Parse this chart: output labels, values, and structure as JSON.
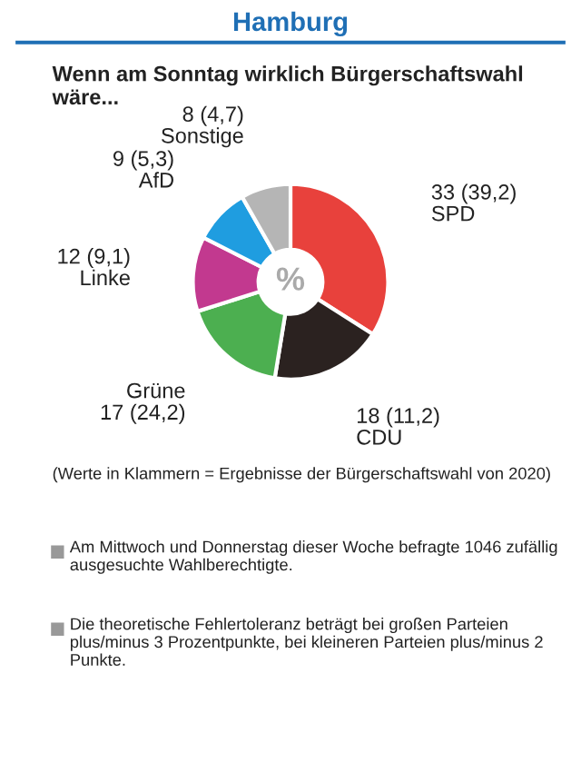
{
  "chart_data": {
    "type": "donut",
    "title": "Hamburg",
    "subtitle": "Wenn am Sonntag wirklich Bürgerschaftswahl wäre...",
    "categories": [
      "SPD",
      "CDU",
      "Grüne",
      "Linke",
      "AfD",
      "Sonstige"
    ],
    "values": [
      33,
      18,
      17,
      12,
      9,
      8
    ],
    "value_labels": [
      "33 (39,2)",
      "18 (11,2)",
      "17 (24,2)",
      "12 (9,1)",
      "9 (5,3)",
      "8 (4,7)"
    ],
    "colors": [
      "#e8413c",
      "#2b2220",
      "#4caf50",
      "#c2398f",
      "#1f9de0",
      "#b5b5b5"
    ],
    "annotations": [
      "%",
      "(Werte in Klammern = Ergebnisse der Bürgerschaftswahl von 2020)",
      "Am Mittwoch und Donnerstag dieser Woche befragte 1046 zufällig ausgesuchte Wahlberechtigte.",
      "Die theoretische Fehlertoleranz beträgt bei großen Parteien plus/minus 3 Prozentpunkte, bei kleineren Parteien plus/minus 2 Punkte."
    ]
  }
}
